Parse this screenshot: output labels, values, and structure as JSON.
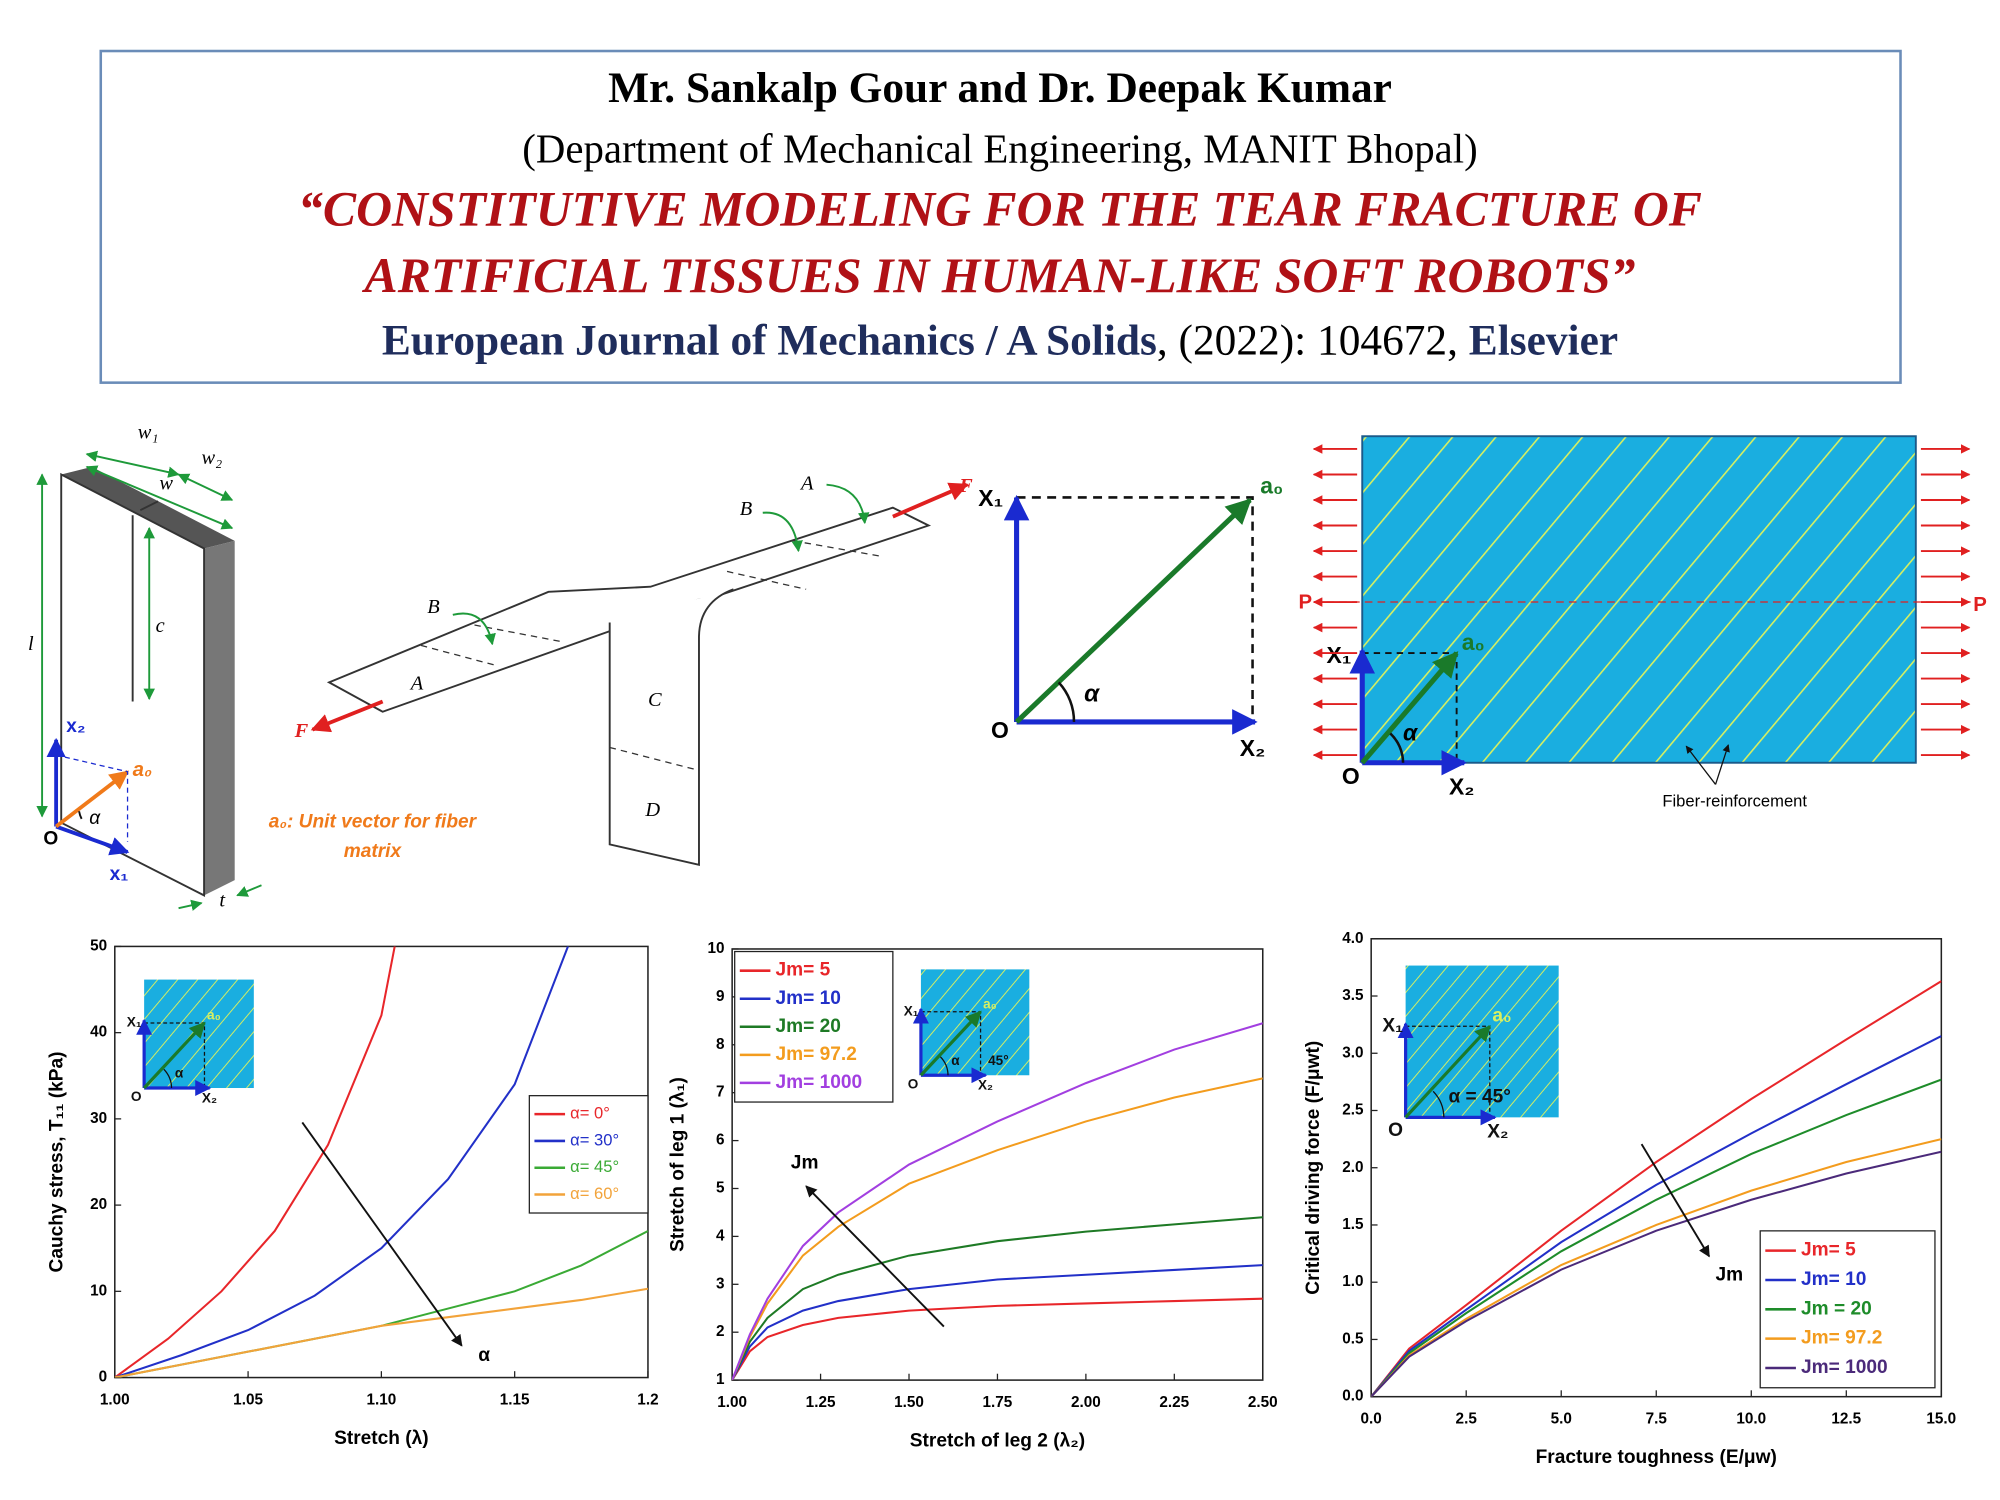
{
  "header": {
    "authors": "Mr. Sankalp Gour and Dr. Deepak Kumar",
    "affiliation": "(Department of Mechanical Engineering, MANIT Bhopal)",
    "title_line1": "“CONSTITUTIVE MODELING FOR THE TEAR FRACTURE OF",
    "title_line2": "ARTIFICIAL TISSUES IN HUMAN-LIKE SOFT ROBOTS”",
    "journal": "European Journal of Mechanics / A Solids",
    "citation": ", (2022): 104672, ",
    "publisher": "Elsevier"
  },
  "diagrams": {
    "specimen": {
      "w1": "w₁",
      "w2": "w₂",
      "w": "w",
      "l": "l",
      "c": "c",
      "x2": "x₂",
      "a0": "a₀",
      "alpha": "α",
      "origin": "O",
      "x1": "x₁",
      "t": "t",
      "caption_line1": "a₀: Unit vector for fiber",
      "caption_line2": "matrix"
    },
    "trouser": {
      "labels": [
        "A",
        "B",
        "F",
        "A",
        "B",
        "C",
        "D",
        "F"
      ]
    },
    "vector": {
      "x1": "X₁",
      "a0": "a₀",
      "alpha": "α",
      "origin": "O",
      "x2": "X₂"
    },
    "plate": {
      "p_left": "P",
      "p_right": "P",
      "x1": "X₁",
      "a0": "a₀",
      "alpha": "α",
      "origin": "O",
      "x2": "X₂",
      "fiber_label": "Fiber-reinforcement"
    }
  },
  "chart_data": [
    {
      "type": "line",
      "x_label": "Stretch (λ)",
      "y_label": "Cauchy stress, T₁₁ (kPa)",
      "xlim": [
        1.0,
        1.2
      ],
      "xticks": [
        {
          "value": 1.0,
          "label": "1.00"
        },
        1.05,
        {
          "value": 1.1,
          "label": "1.10"
        },
        1.15,
        1.2
      ],
      "ylim": [
        0,
        50
      ],
      "yticks": [
        0,
        10,
        20,
        30,
        40,
        50
      ],
      "legend": "center right",
      "annotation": "α",
      "inset_labels": {
        "x1": "X₁",
        "a0": "a₀",
        "alpha": "α",
        "origin": "O",
        "x2": "X₂"
      },
      "series": [
        {
          "name": "α= 0°",
          "color": "#e8262a",
          "x": [
            1.0,
            1.02,
            1.04,
            1.06,
            1.08,
            1.1,
            1.105
          ],
          "values": [
            0,
            4.5,
            10,
            17,
            27,
            42,
            50
          ]
        },
        {
          "name": "α= 30°",
          "color": "#2230c8",
          "x": [
            1.0,
            1.025,
            1.05,
            1.075,
            1.1,
            1.125,
            1.15,
            1.17
          ],
          "values": [
            0,
            2.6,
            5.5,
            9.5,
            15,
            23,
            34,
            50
          ]
        },
        {
          "name": "α= 45°",
          "color": "#3aaa35",
          "x": [
            1.0,
            1.025,
            1.05,
            1.075,
            1.1,
            1.125,
            1.15,
            1.175,
            1.2
          ],
          "values": [
            0,
            1.5,
            3,
            4.5,
            6,
            8,
            10,
            13,
            17
          ]
        },
        {
          "name": "α= 60°",
          "color": "#f2a33a",
          "x": [
            1.0,
            1.025,
            1.05,
            1.075,
            1.1,
            1.125,
            1.15,
            1.175,
            1.2
          ],
          "values": [
            0,
            1.5,
            3,
            4.5,
            6,
            7,
            8,
            9,
            10.3
          ]
        }
      ]
    },
    {
      "type": "line",
      "x_label": "Stretch of leg 2 (λ₂)",
      "y_label": "Stretch of leg 1 (λ₁)",
      "xlim": [
        1.0,
        2.5
      ],
      "xticks": [
        {
          "value": 1.0,
          "label": "1.00"
        },
        1.25,
        {
          "value": 1.5,
          "label": "1.50"
        },
        1.75,
        {
          "value": 2.0,
          "label": "2.00"
        },
        2.25,
        {
          "value": 2.5,
          "label": "2.50"
        }
      ],
      "ylim": [
        1,
        10
      ],
      "yticks": [
        1,
        2,
        3,
        4,
        5,
        6,
        7,
        8,
        9,
        10
      ],
      "legend": "upper left",
      "annotation": "Jm",
      "inset_labels": {
        "x1": "X₁",
        "a0": "a₀",
        "alpha": "α",
        "deg": "45°",
        "origin": "O",
        "x2": "X₂"
      },
      "series": [
        {
          "name": "Jm= 5",
          "color": "#e8262a",
          "x": [
            1.0,
            1.05,
            1.1,
            1.2,
            1.3,
            1.5,
            1.75,
            2.0,
            2.25,
            2.5
          ],
          "values": [
            1,
            1.6,
            1.9,
            2.15,
            2.3,
            2.45,
            2.55,
            2.6,
            2.65,
            2.7
          ]
        },
        {
          "name": "Jm= 10",
          "color": "#2230c8",
          "x": [
            1.0,
            1.05,
            1.1,
            1.2,
            1.3,
            1.5,
            1.75,
            2.0,
            2.25,
            2.5
          ],
          "values": [
            1,
            1.7,
            2.1,
            2.45,
            2.65,
            2.9,
            3.1,
            3.2,
            3.3,
            3.4
          ]
        },
        {
          "name": "Jm= 20",
          "color": "#1e7a25",
          "x": [
            1.0,
            1.05,
            1.1,
            1.2,
            1.3,
            1.5,
            1.75,
            2.0,
            2.25,
            2.5
          ],
          "values": [
            1,
            1.8,
            2.3,
            2.9,
            3.2,
            3.6,
            3.9,
            4.1,
            4.25,
            4.4
          ]
        },
        {
          "name": "Jm= 97.2",
          "color": "#f39c1e",
          "x": [
            1.0,
            1.05,
            1.1,
            1.2,
            1.3,
            1.5,
            1.75,
            2.0,
            2.25,
            2.5
          ],
          "values": [
            1,
            1.9,
            2.6,
            3.6,
            4.2,
            5.1,
            5.8,
            6.4,
            6.9,
            7.3
          ]
        },
        {
          "name": "Jm= 1000",
          "color": "#a23fe0",
          "x": [
            1.0,
            1.05,
            1.1,
            1.2,
            1.3,
            1.5,
            1.75,
            2.0,
            2.25,
            2.5
          ],
          "values": [
            1,
            1.95,
            2.7,
            3.8,
            4.5,
            5.5,
            6.4,
            7.2,
            7.9,
            8.45
          ]
        }
      ]
    },
    {
      "type": "line",
      "x_label": "Fracture toughness (E/μw)",
      "y_label": "Critical driving force (F/μwt)",
      "xlim": [
        0,
        15
      ],
      "xticks": [
        {
          "value": 0,
          "label": "0.0"
        },
        2.5,
        {
          "value": 5,
          "label": "5.0"
        },
        7.5,
        {
          "value": 10,
          "label": "10.0"
        },
        12.5,
        {
          "value": 15,
          "label": "15.0"
        }
      ],
      "ylim": [
        0,
        4
      ],
      "yticks": [
        {
          "value": 0,
          "label": "0.0"
        },
        0.5,
        {
          "value": 1,
          "label": "1.0"
        },
        1.5,
        {
          "value": 2,
          "label": "2.0"
        },
        2.5,
        {
          "value": 3,
          "label": "3.0"
        },
        3.5,
        {
          "value": 4,
          "label": "4.0"
        }
      ],
      "legend": "lower right",
      "annotation": "Jm",
      "inset_labels": {
        "x1": "X₁",
        "a0": "a₀",
        "alpha": "α = 45°",
        "origin": "O",
        "x2": "X₂"
      },
      "series": [
        {
          "name": "Jm= 5",
          "color": "#e8262a",
          "x": [
            0,
            1,
            2.5,
            5,
            7.5,
            10,
            12.5,
            15
          ],
          "values": [
            0,
            0.42,
            0.8,
            1.45,
            2.05,
            2.6,
            3.12,
            3.63
          ]
        },
        {
          "name": "Jm= 10",
          "color": "#2230c8",
          "x": [
            0,
            1,
            2.5,
            5,
            7.5,
            10,
            12.5,
            15
          ],
          "values": [
            0,
            0.4,
            0.76,
            1.35,
            1.85,
            2.3,
            2.73,
            3.15
          ]
        },
        {
          "name": "Jm = 20",
          "color": "#1e8c2a",
          "x": [
            0,
            1,
            2.5,
            5,
            7.5,
            10,
            12.5,
            15
          ],
          "values": [
            0,
            0.38,
            0.73,
            1.27,
            1.72,
            2.12,
            2.46,
            2.77
          ]
        },
        {
          "name": "Jm= 97.2",
          "color": "#f39c1e",
          "x": [
            0,
            1,
            2.5,
            5,
            7.5,
            10,
            12.5,
            15
          ],
          "values": [
            0,
            0.36,
            0.68,
            1.15,
            1.5,
            1.8,
            2.05,
            2.25
          ]
        },
        {
          "name": "Jm= 1000",
          "color": "#4b2a7a",
          "x": [
            0,
            1,
            2.5,
            5,
            7.5,
            10,
            12.5,
            15
          ],
          "values": [
            0,
            0.35,
            0.66,
            1.11,
            1.45,
            1.72,
            1.95,
            2.14
          ]
        }
      ]
    }
  ]
}
